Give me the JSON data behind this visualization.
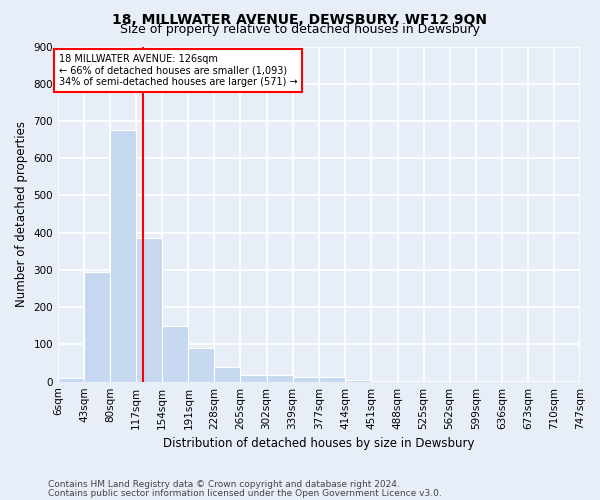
{
  "title": "18, MILLWATER AVENUE, DEWSBURY, WF12 9QN",
  "subtitle": "Size of property relative to detached houses in Dewsbury",
  "xlabel": "Distribution of detached houses by size in Dewsbury",
  "ylabel": "Number of detached properties",
  "bin_edges": [
    6,
    43,
    80,
    117,
    154,
    191,
    228,
    265,
    302,
    339,
    377,
    414,
    451,
    488,
    525,
    562,
    599,
    636,
    673,
    710,
    747
  ],
  "bar_heights": [
    10,
    295,
    675,
    385,
    150,
    90,
    40,
    17,
    17,
    12,
    12,
    5,
    0,
    0,
    0,
    0,
    0,
    0,
    0,
    0
  ],
  "bar_color": "#c5d8f0",
  "vline_x": 126,
  "vline_color": "red",
  "ylim": [
    0,
    900
  ],
  "yticks": [
    0,
    100,
    200,
    300,
    400,
    500,
    600,
    700,
    800,
    900
  ],
  "annotation_box_text": "18 MILLWATER AVENUE: 126sqm\n← 66% of detached houses are smaller (1,093)\n34% of semi-detached houses are larger (571) →",
  "annotation_box_color": "red",
  "footnote1": "Contains HM Land Registry data © Crown copyright and database right 2024.",
  "footnote2": "Contains public sector information licensed under the Open Government Licence v3.0.",
  "background_color": "#e8eef8",
  "plot_background_color": "#e8eef8",
  "grid_color": "white",
  "title_fontsize": 10,
  "subtitle_fontsize": 9,
  "axis_label_fontsize": 8.5,
  "tick_fontsize": 7.5,
  "footnote_fontsize": 6.5
}
